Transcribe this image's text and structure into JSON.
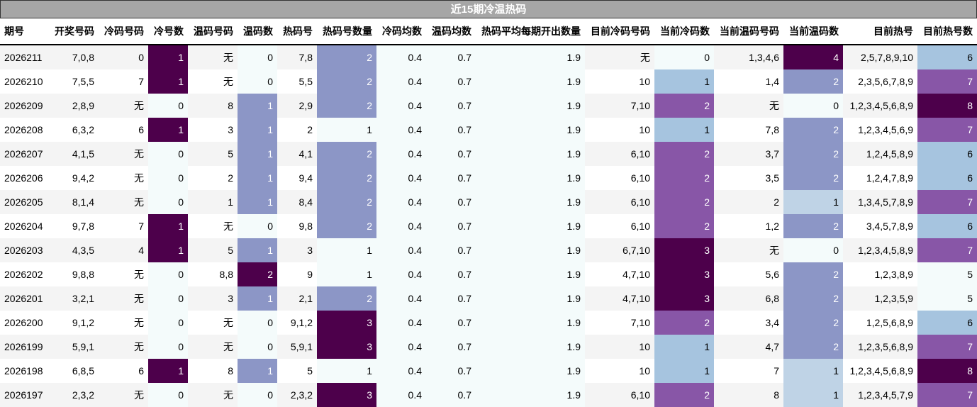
{
  "title": "近15期冷温热码",
  "headers": [
    "期号",
    "开奖号码",
    "冷码号码",
    "冷号数",
    "温码号码",
    "温码数",
    "热码号",
    "热码号数量",
    "冷码均数",
    "温码均数",
    "热码平均每期开出数量",
    "目前冷码号码",
    "当前冷码数",
    "当前温码号码",
    "当前温码数",
    "目前热号",
    "目前热号数"
  ],
  "rows": [
    [
      "2026211",
      "7,0,8",
      "0",
      "1",
      "无",
      "0",
      "7,8",
      "2",
      "0.4",
      "0.7",
      "1.9",
      "无",
      "0",
      "1,3,4,6",
      "4",
      "2,5,7,8,9,10",
      "6"
    ],
    [
      "2026210",
      "7,5,5",
      "7",
      "1",
      "无",
      "0",
      "5,5",
      "2",
      "0.4",
      "0.7",
      "1.9",
      "10",
      "1",
      "1,4",
      "2",
      "2,3,5,6,7,8,9",
      "7"
    ],
    [
      "2026209",
      "2,8,9",
      "无",
      "0",
      "8",
      "1",
      "2,9",
      "2",
      "0.4",
      "0.7",
      "1.9",
      "7,10",
      "2",
      "无",
      "0",
      "1,2,3,4,5,6,8,9",
      "8"
    ],
    [
      "2026208",
      "6,3,2",
      "6",
      "1",
      "3",
      "1",
      "2",
      "1",
      "0.4",
      "0.7",
      "1.9",
      "10",
      "1",
      "7,8",
      "2",
      "1,2,3,4,5,6,9",
      "7"
    ],
    [
      "2026207",
      "4,1,5",
      "无",
      "0",
      "5",
      "1",
      "4,1",
      "2",
      "0.4",
      "0.7",
      "1.9",
      "6,10",
      "2",
      "3,7",
      "2",
      "1,2,4,5,8,9",
      "6"
    ],
    [
      "2026206",
      "9,4,2",
      "无",
      "0",
      "2",
      "1",
      "9,4",
      "2",
      "0.4",
      "0.7",
      "1.9",
      "6,10",
      "2",
      "3,5",
      "2",
      "1,2,4,7,8,9",
      "6"
    ],
    [
      "2026205",
      "8,1,4",
      "无",
      "0",
      "1",
      "1",
      "8,4",
      "2",
      "0.4",
      "0.7",
      "1.9",
      "6,10",
      "2",
      "2",
      "1",
      "1,3,4,5,7,8,9",
      "7"
    ],
    [
      "2026204",
      "9,7,8",
      "7",
      "1",
      "无",
      "0",
      "9,8",
      "2",
      "0.4",
      "0.7",
      "1.9",
      "6,10",
      "2",
      "1,2",
      "2",
      "3,4,5,7,8,9",
      "6"
    ],
    [
      "2026203",
      "4,3,5",
      "4",
      "1",
      "5",
      "1",
      "3",
      "1",
      "0.4",
      "0.7",
      "1.9",
      "6,7,10",
      "3",
      "无",
      "0",
      "1,2,3,4,5,8,9",
      "7"
    ],
    [
      "2026202",
      "9,8,8",
      "无",
      "0",
      "8,8",
      "2",
      "9",
      "1",
      "0.4",
      "0.7",
      "1.9",
      "4,7,10",
      "3",
      "5,6",
      "2",
      "1,2,3,8,9",
      "5"
    ],
    [
      "2026201",
      "3,2,1",
      "无",
      "0",
      "3",
      "1",
      "2,1",
      "2",
      "0.4",
      "0.7",
      "1.9",
      "4,7,10",
      "3",
      "6,8",
      "2",
      "1,2,3,5,9",
      "5"
    ],
    [
      "2026200",
      "9,1,2",
      "无",
      "0",
      "无",
      "0",
      "9,1,2",
      "3",
      "0.4",
      "0.7",
      "1.9",
      "7,10",
      "2",
      "3,4",
      "2",
      "1,2,5,6,8,9",
      "6"
    ],
    [
      "2026199",
      "5,9,1",
      "无",
      "0",
      "无",
      "0",
      "5,9,1",
      "3",
      "0.4",
      "0.7",
      "1.9",
      "10",
      "1",
      "4,7",
      "2",
      "1,2,3,5,6,8,9",
      "7"
    ],
    [
      "2026198",
      "6,8,5",
      "6",
      "1",
      "8",
      "1",
      "5",
      "1",
      "0.4",
      "0.7",
      "1.9",
      "10",
      "1",
      "7",
      "1",
      "1,2,3,4,5,6,8,9",
      "8"
    ],
    [
      "2026197",
      "2,3,2",
      "无",
      "0",
      "无",
      "0",
      "2,3,2",
      "3",
      "0.4",
      "0.7",
      "1.9",
      "6,10",
      "2",
      "8",
      "1",
      "1,2,3,4,5,7,9",
      "7"
    ]
  ],
  "colors": {
    "dark": "#4d004b",
    "mid": "#8856a7",
    "blue": "#8c96c6",
    "light": "#a6c4df",
    "pale": "#bfd3e6",
    "mint": "#f4fbfb",
    "title_bg": "#a6a6a6"
  }
}
